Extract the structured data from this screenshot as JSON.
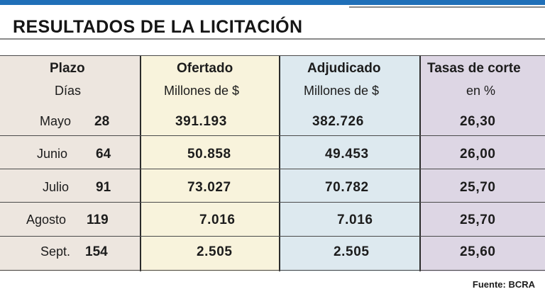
{
  "title": "RESULTADOS DE LA LICITACIÓN",
  "columns": [
    {
      "header": "Plazo",
      "sub": "Días"
    },
    {
      "header": "Ofertado",
      "sub": "Millones de $"
    },
    {
      "header": "Adjudicado",
      "sub": "Millones de $"
    },
    {
      "header": "Tasas de corte",
      "sub": "en %"
    }
  ],
  "rows": [
    {
      "month": "Mayo",
      "days": "28",
      "ofertado": "391.193",
      "adjudicado": "382.726",
      "tasa": "26,30"
    },
    {
      "month": "Junio",
      "days": "64",
      "ofertado": "50.858",
      "adjudicado": "49.453",
      "tasa": "26,00"
    },
    {
      "month": "Julio",
      "days": "91",
      "ofertado": "73.027",
      "adjudicado": "70.782",
      "tasa": "25,70"
    },
    {
      "month": "Agosto",
      "days": "119",
      "ofertado": "7.016",
      "adjudicado": "7.016",
      "tasa": "25,70"
    },
    {
      "month": "Sept.",
      "days": "154",
      "ofertado": "2.505",
      "adjudicado": "2.505",
      "tasa": "25,60"
    }
  ],
  "source": "Fuente: BCRA",
  "colors": {
    "accent": "#1f6fb8",
    "plazo_bg": "#ede6df",
    "ofertado_bg": "#f8f3dc",
    "adjudicado_bg": "#dde9ef",
    "tasa_bg": "#ddd6e4"
  }
}
